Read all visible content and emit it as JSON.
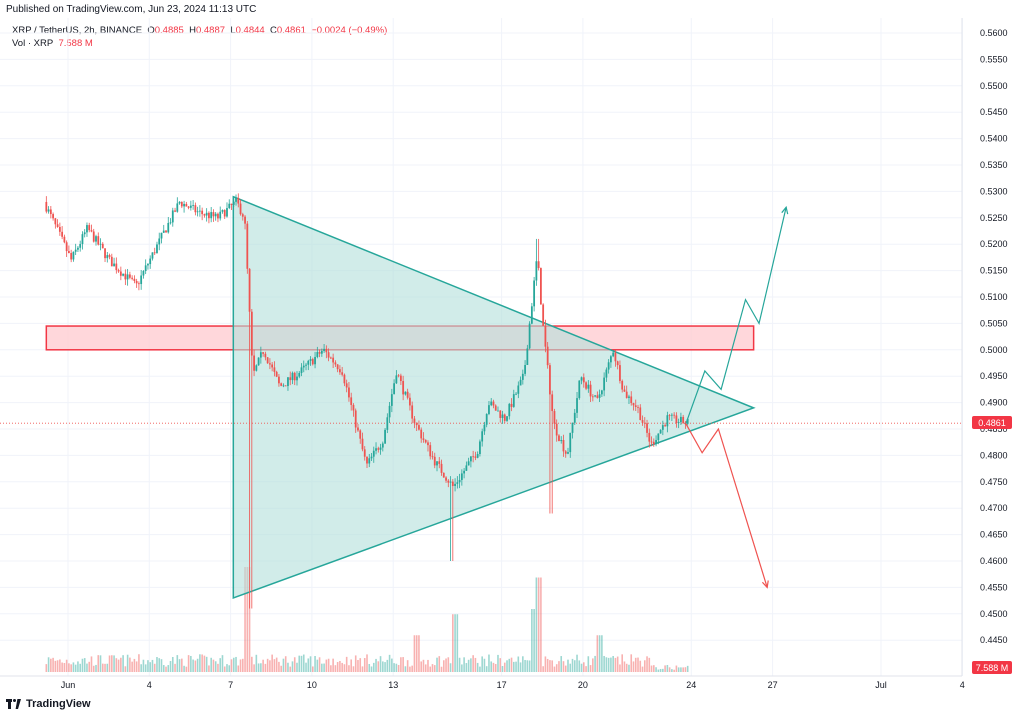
{
  "header": {
    "published": "Published on TradingView.com, Jun 23, 2024 11:13 UTC"
  },
  "legend": {
    "symbol": "XRP / TetherUS, 2h, BINANCE",
    "o_label": "O",
    "o_value": "0.4885",
    "h_label": "H",
    "h_value": "0.4887",
    "l_label": "L",
    "l_value": "0.4844",
    "c_label": "C",
    "c_value": "0.4861",
    "change": "−0.0024 (−0.49%)",
    "vol_label": "Vol · XRP",
    "vol_value": "7.588 M"
  },
  "footer": {
    "brand": "TradingView"
  },
  "colors": {
    "up": "#26a69a",
    "down": "#ef5350",
    "triangle_fill": "#b2dfdb",
    "triangle_line": "#26a69a",
    "zone_fill": "#ffcdd2",
    "zone_line": "#f23645",
    "price_badge": "#f23645"
  },
  "chart_data": {
    "type": "candlestick",
    "y_axis": {
      "ylim": [
        0.44,
        0.562
      ],
      "ticks": [
        "0.5600",
        "0.5550",
        "0.5500",
        "0.5450",
        "0.5400",
        "0.5350",
        "0.5300",
        "0.5250",
        "0.5200",
        "0.5150",
        "0.5100",
        "0.5050",
        "0.5000",
        "0.4950",
        "0.4900",
        "0.4850",
        "0.4800",
        "0.4750",
        "0.4700",
        "0.4650",
        "0.4600",
        "0.4550",
        "0.4500",
        "0.4450"
      ]
    },
    "x_axis": {
      "labels": [
        "Jun",
        "4",
        "7",
        "10",
        "13",
        "17",
        "20",
        "24",
        "27",
        "Jul",
        "4"
      ],
      "label_days": [
        0,
        3,
        6,
        9,
        12,
        16,
        19,
        23,
        26,
        30,
        33
      ]
    },
    "last_price": "0.4861",
    "last_volume": "7.588 M",
    "annotations": {
      "triangle": [
        [
          6.1,
          0.529
        ],
        [
          25.3,
          0.489
        ],
        [
          6.1,
          0.453
        ]
      ],
      "resistance_zone": {
        "day_range": [
          -0.8,
          25.3
        ],
        "price_range": [
          0.5,
          0.5045
        ]
      },
      "bullish_path": [
        [
          22.8,
          0.486
        ],
        [
          23.5,
          0.496
        ],
        [
          24.1,
          0.4925
        ],
        [
          25.0,
          0.5095
        ],
        [
          25.5,
          0.505
        ],
        [
          26.5,
          0.527
        ]
      ],
      "bearish_path": [
        [
          22.8,
          0.486
        ],
        [
          23.4,
          0.4805
        ],
        [
          24.0,
          0.485
        ],
        [
          25.8,
          0.455
        ]
      ]
    },
    "price_path_anchors": [
      [
        -0.8,
        0.528
      ],
      [
        0.2,
        0.517
      ],
      [
        0.8,
        0.523
      ],
      [
        1.6,
        0.517
      ],
      [
        2.6,
        0.512
      ],
      [
        3.5,
        0.521
      ],
      [
        4.2,
        0.528
      ],
      [
        4.9,
        0.526
      ],
      [
        5.6,
        0.525
      ],
      [
        6.3,
        0.528
      ],
      [
        6.6,
        0.525
      ],
      [
        6.9,
        0.495
      ],
      [
        7.3,
        0.5
      ],
      [
        7.9,
        0.493
      ],
      [
        8.7,
        0.496
      ],
      [
        9.5,
        0.5
      ],
      [
        10.2,
        0.496
      ],
      [
        10.6,
        0.488
      ],
      [
        11.1,
        0.478
      ],
      [
        11.7,
        0.483
      ],
      [
        12.2,
        0.496
      ],
      [
        12.9,
        0.486
      ],
      [
        13.6,
        0.479
      ],
      [
        14.3,
        0.474
      ],
      [
        15.2,
        0.481
      ],
      [
        15.6,
        0.49
      ],
      [
        16.2,
        0.487
      ],
      [
        16.9,
        0.495
      ],
      [
        17.4,
        0.518
      ],
      [
        17.6,
        0.505
      ],
      [
        18.0,
        0.486
      ],
      [
        18.5,
        0.48
      ],
      [
        19.0,
        0.495
      ],
      [
        19.6,
        0.49
      ],
      [
        20.2,
        0.5
      ],
      [
        20.6,
        0.492
      ],
      [
        21.1,
        0.489
      ],
      [
        21.6,
        0.482
      ],
      [
        22.2,
        0.487
      ],
      [
        22.9,
        0.4862
      ]
    ],
    "volume_spikes": [
      [
        6.6,
        1.0
      ],
      [
        17.4,
        0.9
      ],
      [
        17.2,
        0.6
      ],
      [
        14.3,
        0.55
      ],
      [
        12.9,
        0.35
      ],
      [
        19.6,
        0.35
      ]
    ]
  }
}
